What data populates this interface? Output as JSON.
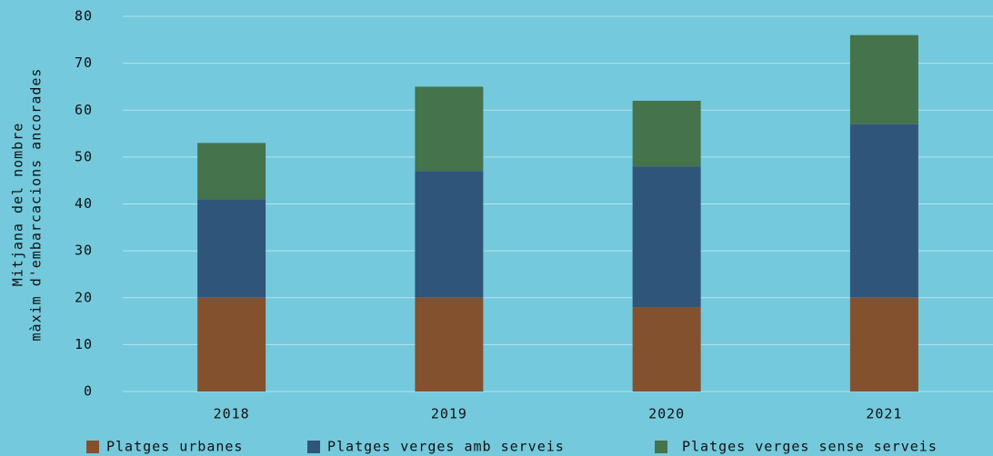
{
  "chart_data": {
    "type": "bar",
    "stacked": true,
    "ylabel": [
      "Mitjana del nombre",
      "màxim d'embarcacions ancorades"
    ],
    "categories": [
      "2018",
      "2019",
      "2020",
      "2021"
    ],
    "series": [
      {
        "name": "Platges urbanes",
        "color": "#84512f",
        "values": [
          20,
          20,
          18,
          20
        ]
      },
      {
        "name": "Platges verges amb serveis",
        "color": "#30557a",
        "values": [
          21,
          27,
          30,
          37
        ]
      },
      {
        "name": "Platges verges sense serveis",
        "color": "#45734c",
        "values": [
          12,
          18,
          14,
          19
        ]
      }
    ],
    "ylim": [
      0,
      80
    ],
    "yticks": [
      0,
      10,
      20,
      30,
      40,
      50,
      60,
      70,
      80
    ],
    "grid": true,
    "legend": "bottom"
  }
}
